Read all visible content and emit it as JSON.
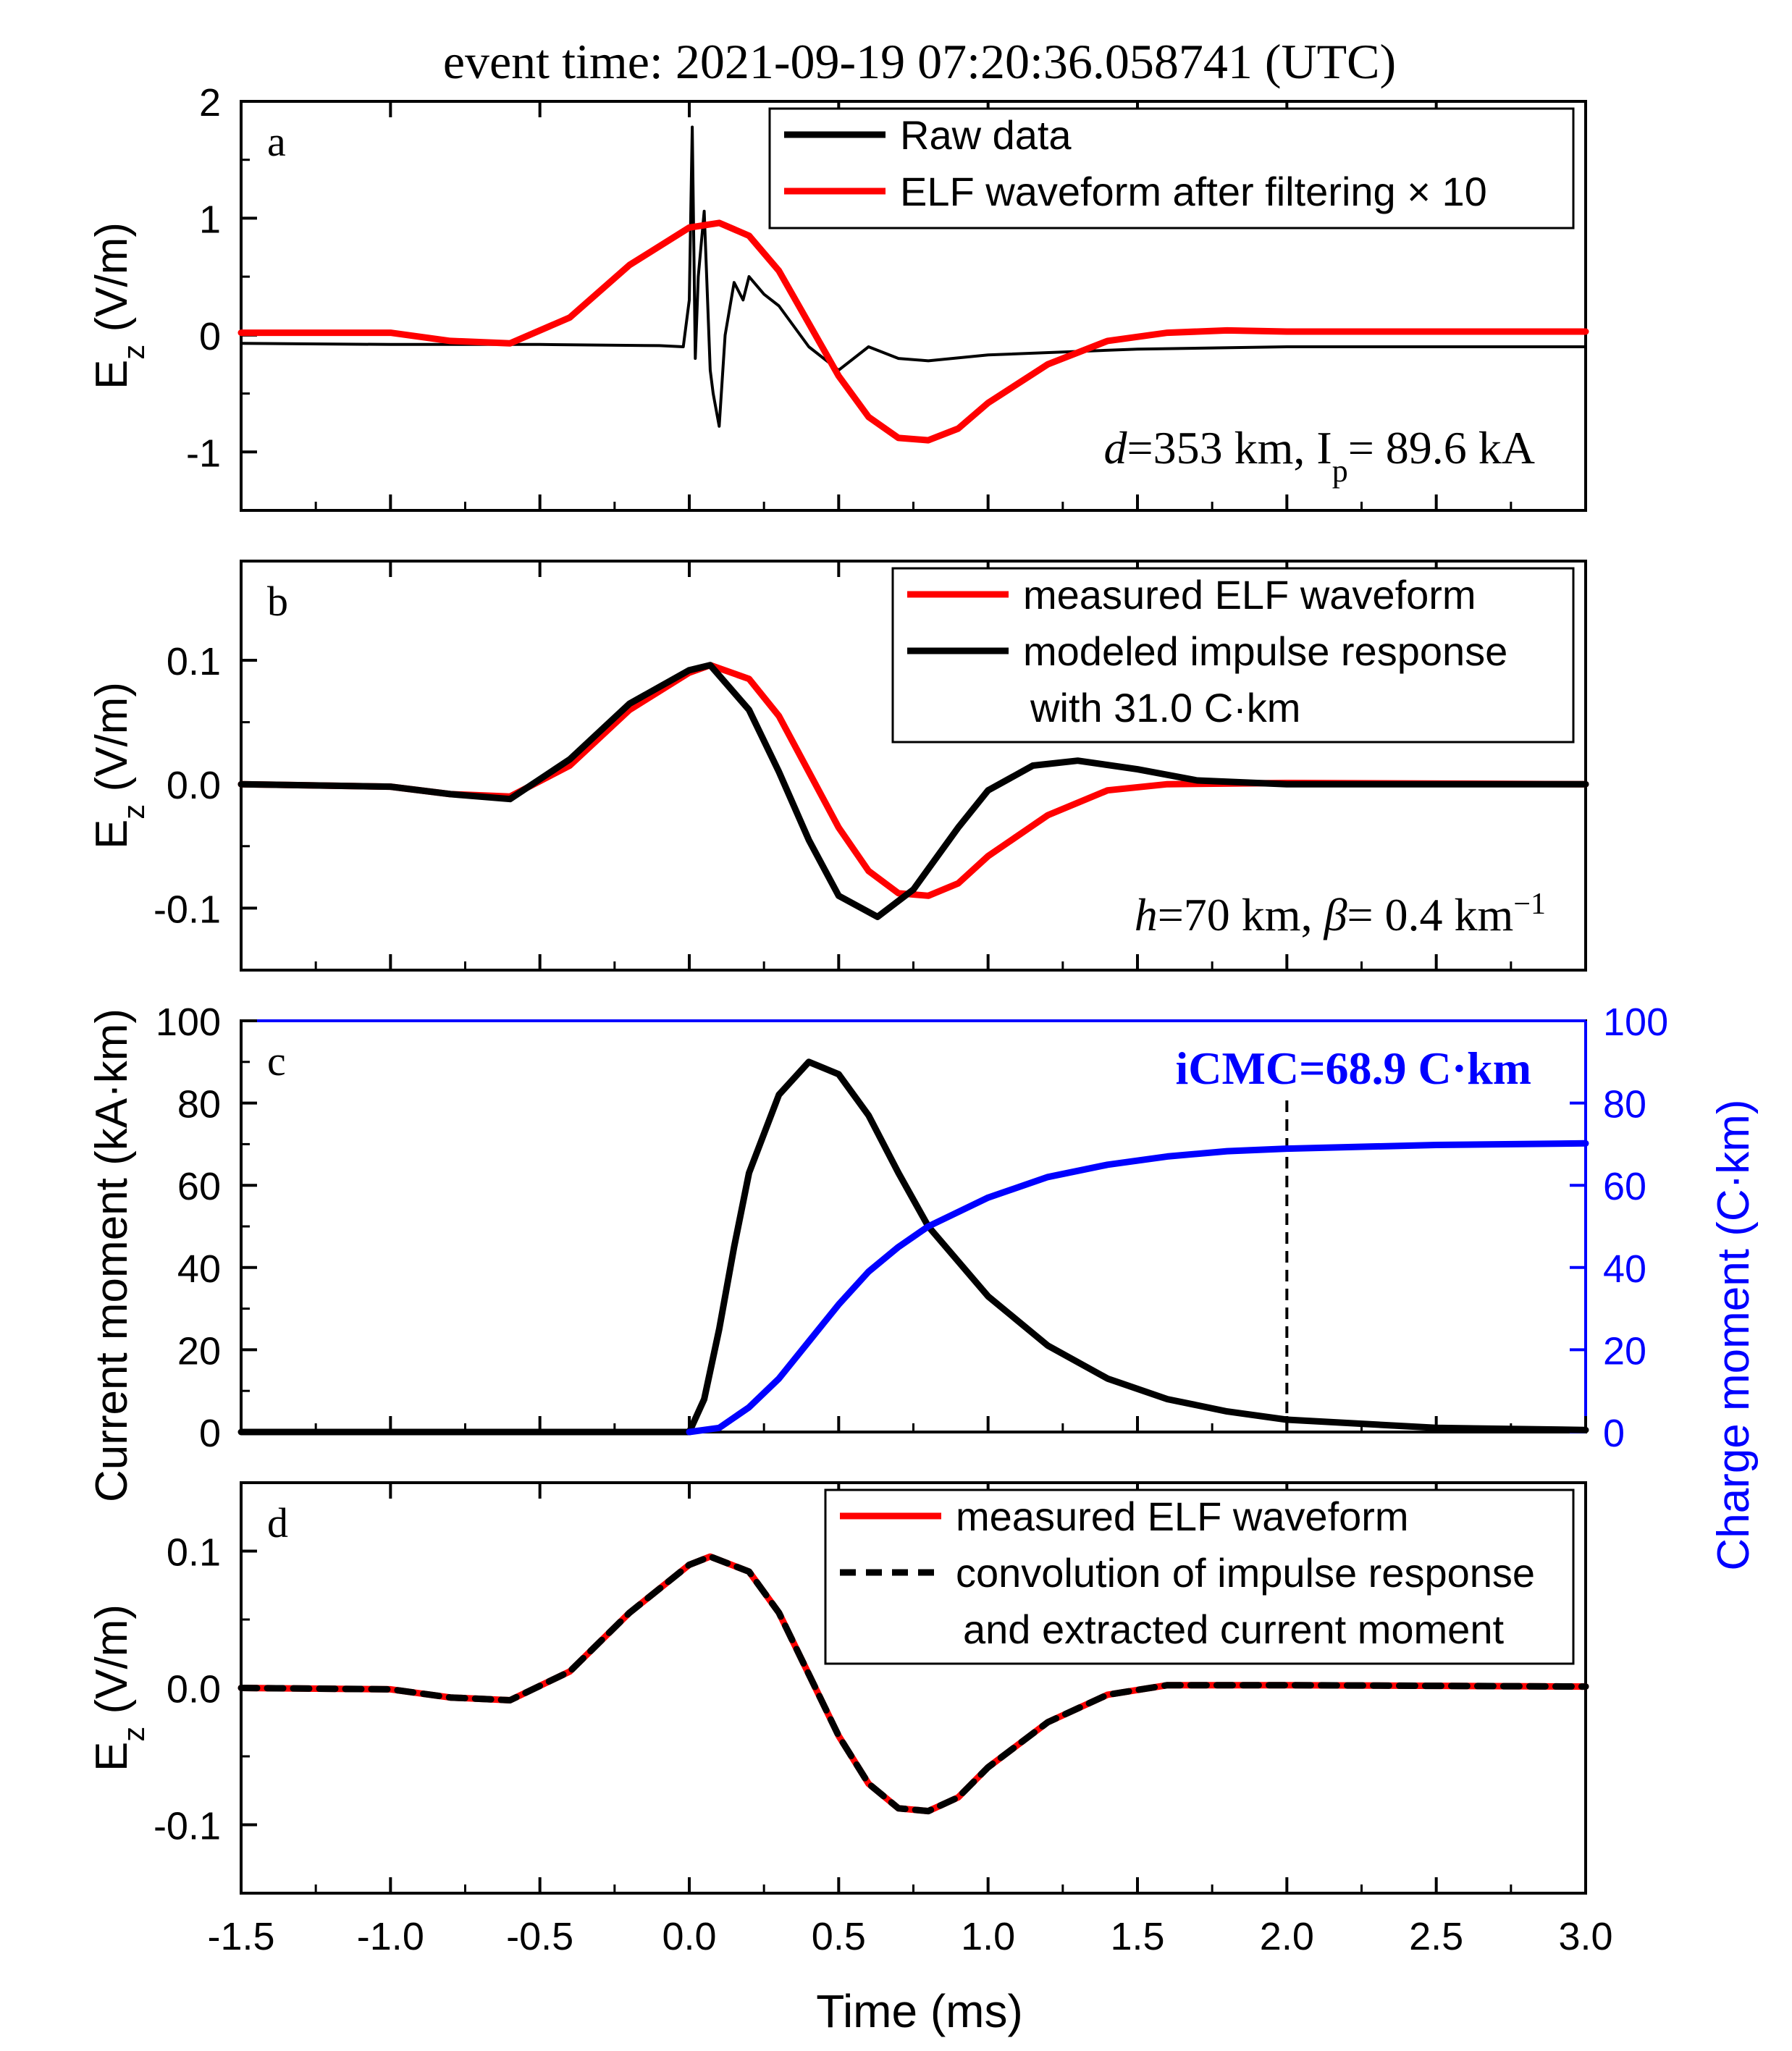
{
  "figure": {
    "title": "event time: 2021-09-19 07:20:36.058741 (UTC)",
    "xlabel": "Time (ms)",
    "xlim": [
      -1.5,
      3.0
    ],
    "xticks": [
      "-1.5",
      "-1.0",
      "-0.5",
      "0.0",
      "0.5",
      "1.0",
      "1.5",
      "2.0",
      "2.5",
      "3.0"
    ],
    "colors": {
      "red": "#ff0000",
      "black": "#000000",
      "blue": "#0000ff"
    }
  },
  "chart_data": [
    {
      "panel": "a",
      "type": "line",
      "ylabel": "E_z (V/m)",
      "ylim": [
        -1.5,
        2.0
      ],
      "yticks": [
        "-1",
        "0",
        "1",
        "2"
      ],
      "legend": [
        "Raw data",
        "ELF waveform after filtering × 10"
      ],
      "annotation": "d=353 km, I_p= 89.6 kA",
      "series": [
        {
          "name": "Raw data",
          "color": "#000000",
          "x": [
            -1.5,
            -1.0,
            -0.5,
            -0.1,
            -0.02,
            0.0,
            0.01,
            0.02,
            0.03,
            0.05,
            0.07,
            0.08,
            0.1,
            0.12,
            0.15,
            0.18,
            0.2,
            0.25,
            0.3,
            0.4,
            0.5,
            0.6,
            0.7,
            0.8,
            1.0,
            1.5,
            2.0,
            2.5,
            3.0
          ],
          "y": [
            -0.07,
            -0.08,
            -0.08,
            -0.09,
            -0.1,
            0.3,
            1.78,
            -0.2,
            0.5,
            1.06,
            -0.3,
            -0.5,
            -0.78,
            0.0,
            0.45,
            0.3,
            0.5,
            0.35,
            0.25,
            -0.1,
            -0.3,
            -0.1,
            -0.2,
            -0.22,
            -0.17,
            -0.12,
            -0.1,
            -0.1,
            -0.1
          ]
        },
        {
          "name": "ELF waveform after filtering × 10",
          "color": "#ff0000",
          "x": [
            -1.5,
            -1.3,
            -1.0,
            -0.8,
            -0.6,
            -0.4,
            -0.2,
            0.0,
            0.1,
            0.2,
            0.3,
            0.4,
            0.5,
            0.6,
            0.7,
            0.8,
            0.9,
            1.0,
            1.2,
            1.4,
            1.6,
            1.8,
            2.0,
            2.5,
            3.0
          ],
          "y": [
            0.02,
            0.02,
            0.02,
            -0.05,
            -0.07,
            0.15,
            0.6,
            0.92,
            0.96,
            0.85,
            0.55,
            0.1,
            -0.35,
            -0.7,
            -0.88,
            -0.9,
            -0.8,
            -0.58,
            -0.25,
            -0.05,
            0.02,
            0.04,
            0.03,
            0.03,
            0.03
          ]
        }
      ]
    },
    {
      "panel": "b",
      "type": "line",
      "ylabel": "E_z (V/m)",
      "ylim": [
        -0.15,
        0.18
      ],
      "yticks": [
        "-0.1",
        "0.0",
        "0.1"
      ],
      "legend": [
        "measured ELF waveform",
        "modeled impulse response",
        "with 31.0 C·km"
      ],
      "annotation": "h=70 km, β= 0.4 km^-1",
      "series": [
        {
          "name": "measured ELF waveform",
          "color": "#ff0000",
          "x": [
            -1.5,
            -1.0,
            -0.8,
            -0.6,
            -0.4,
            -0.2,
            0.0,
            0.07,
            0.2,
            0.3,
            0.4,
            0.5,
            0.6,
            0.7,
            0.8,
            0.9,
            1.0,
            1.2,
            1.4,
            1.6,
            2.0,
            3.0
          ],
          "y": [
            0.0,
            -0.002,
            -0.008,
            -0.01,
            0.015,
            0.06,
            0.09,
            0.096,
            0.085,
            0.055,
            0.01,
            -0.035,
            -0.07,
            -0.088,
            -0.09,
            -0.08,
            -0.058,
            -0.025,
            -0.005,
            0.0,
            0.001,
            0.0
          ]
        },
        {
          "name": "modeled impulse response",
          "color": "#000000",
          "x": [
            -1.5,
            -1.0,
            -0.8,
            -0.6,
            -0.4,
            -0.2,
            0.0,
            0.07,
            0.2,
            0.3,
            0.4,
            0.5,
            0.63,
            0.75,
            0.9,
            1.0,
            1.15,
            1.3,
            1.5,
            1.7,
            2.0,
            3.0
          ],
          "y": [
            0.0,
            -0.002,
            -0.008,
            -0.012,
            0.02,
            0.065,
            0.092,
            0.096,
            0.06,
            0.01,
            -0.045,
            -0.09,
            -0.107,
            -0.085,
            -0.035,
            -0.005,
            0.015,
            0.019,
            0.012,
            0.003,
            0.0,
            0.0
          ]
        }
      ]
    },
    {
      "panel": "c",
      "type": "line",
      "ylabel": "Current moment (kA·km)",
      "ylabel_right": "Charge moment (C·km)",
      "ylim": [
        0,
        100
      ],
      "yticks": [
        "0",
        "20",
        "40",
        "60",
        "80",
        "100"
      ],
      "annotation": "iCMC=68.9 C·km",
      "vline_x": 2.0,
      "series": [
        {
          "name": "Current moment",
          "color": "#000000",
          "x": [
            -1.5,
            0.0,
            0.05,
            0.1,
            0.15,
            0.2,
            0.3,
            0.4,
            0.5,
            0.6,
            0.7,
            0.8,
            1.0,
            1.2,
            1.4,
            1.6,
            1.8,
            2.0,
            2.5,
            3.0
          ],
          "y": [
            0,
            0,
            8,
            25,
            45,
            63,
            82,
            90,
            87,
            77,
            63,
            50,
            33,
            21,
            13,
            8,
            5,
            3,
            1,
            0.5
          ]
        },
        {
          "name": "Charge moment",
          "color": "#0000ff",
          "x": [
            0.0,
            0.1,
            0.2,
            0.3,
            0.4,
            0.5,
            0.6,
            0.7,
            0.8,
            1.0,
            1.2,
            1.4,
            1.6,
            1.8,
            2.0,
            2.5,
            3.0
          ],
          "y": [
            0,
            1,
            6,
            13,
            22,
            31,
            39,
            45,
            50,
            57,
            62,
            65,
            67,
            68.3,
            68.9,
            69.8,
            70.2
          ]
        }
      ]
    },
    {
      "panel": "d",
      "type": "line",
      "ylabel": "E_z (V/m)",
      "ylim": [
        -0.15,
        0.15
      ],
      "yticks": [
        "-0.1",
        "0.0",
        "0.1"
      ],
      "legend": [
        "measured ELF waveform",
        "convolution of impulse response",
        "and extracted current moment"
      ],
      "series": [
        {
          "name": "measured ELF waveform",
          "color": "#ff0000",
          "x": [
            -1.5,
            -1.0,
            -0.8,
            -0.6,
            -0.4,
            -0.2,
            0.0,
            0.07,
            0.2,
            0.3,
            0.4,
            0.5,
            0.6,
            0.7,
            0.8,
            0.9,
            1.0,
            1.2,
            1.4,
            1.6,
            2.0,
            3.0
          ],
          "y": [
            0.0,
            -0.001,
            -0.007,
            -0.009,
            0.012,
            0.055,
            0.09,
            0.096,
            0.085,
            0.055,
            0.01,
            -0.035,
            -0.07,
            -0.088,
            -0.09,
            -0.08,
            -0.058,
            -0.025,
            -0.005,
            0.002,
            0.002,
            0.001
          ]
        },
        {
          "name": "convolution of impulse response and extracted current moment",
          "color": "#000000",
          "dashed": true,
          "x": [
            -1.5,
            -1.0,
            -0.8,
            -0.6,
            -0.4,
            -0.2,
            0.0,
            0.07,
            0.2,
            0.3,
            0.4,
            0.5,
            0.6,
            0.7,
            0.8,
            0.9,
            1.0,
            1.2,
            1.4,
            1.6,
            2.0,
            3.0
          ],
          "y": [
            0.0,
            -0.001,
            -0.007,
            -0.009,
            0.012,
            0.055,
            0.09,
            0.096,
            0.085,
            0.055,
            0.01,
            -0.035,
            -0.07,
            -0.088,
            -0.09,
            -0.08,
            -0.058,
            -0.025,
            -0.005,
            0.002,
            0.002,
            0.001
          ]
        }
      ]
    }
  ]
}
